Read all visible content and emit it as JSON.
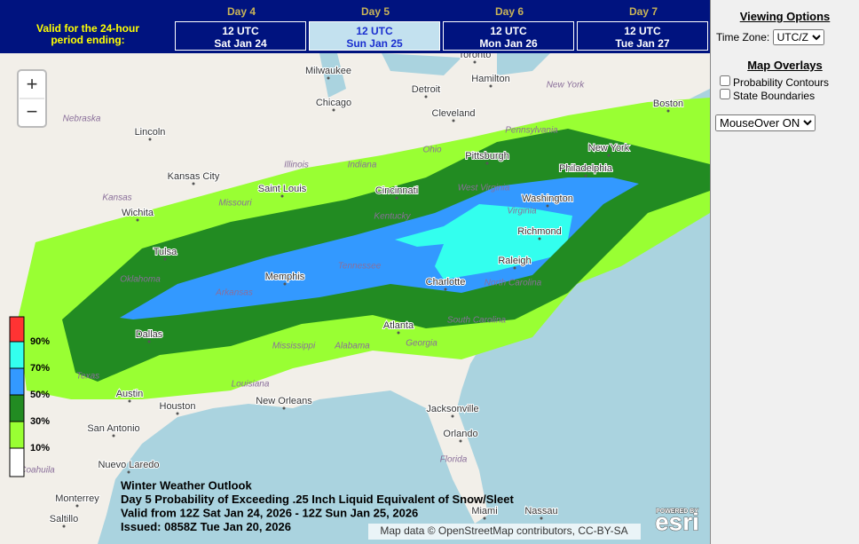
{
  "header": {
    "valid_label": "Valid for the 24-hour period ending:",
    "tabs": [
      {
        "day": "Day 4",
        "time": "12 UTC",
        "date": "Sat Jan 24"
      },
      {
        "day": "Day 5",
        "time": "12 UTC",
        "date": "Sun Jan 25"
      },
      {
        "day": "Day 6",
        "time": "12 UTC",
        "date": "Mon Jan 26"
      },
      {
        "day": "Day 7",
        "time": "12 UTC",
        "date": "Tue Jan 27"
      }
    ]
  },
  "zoom": {
    "in": "+",
    "out": "−"
  },
  "cities": [
    "Milwaukee",
    "Toronto",
    "Hamilton",
    "Detroit",
    "Chicago",
    "Cleveland",
    "Boston",
    "Lincoln",
    "Pittsburgh",
    "New York",
    "Philadelphia",
    "Kansas City",
    "Saint Louis",
    "Cincinnati",
    "Washington",
    "Wichita",
    "Richmond",
    "Tulsa",
    "Memphis",
    "Raleigh",
    "Charlotte",
    "Dallas",
    "Atlanta",
    "Austin",
    "Houston",
    "New Orleans",
    "Jacksonville",
    "San Antonio",
    "Orlando",
    "Nuevo Laredo",
    "Monterrey",
    "Saltillo",
    "Miami",
    "Nassau"
  ],
  "regions": [
    "Nebraska",
    "Illinois",
    "Indiana",
    "Ohio",
    "Pennsylvania",
    "New York",
    "Kansas",
    "Missouri",
    "West Virginia",
    "Kentucky",
    "Virginia",
    "Tennessee",
    "Oklahoma",
    "Arkansas",
    "North Carolina",
    "South Carolina",
    "Mississippi",
    "Alabama",
    "Georgia",
    "Texas",
    "Louisiana",
    "Florida",
    "Coahuila"
  ],
  "legend": [
    "90%",
    "70%",
    "50%",
    "30%",
    "10%"
  ],
  "caption": [
    "Winter Weather Outlook",
    "Day 5 Probability of Exceeding .25 Inch Liquid Equivalent of Snow/Sleet",
    "Valid from 12Z Sat Jan 24, 2026 - 12Z Sun Jan 25, 2026",
    "Issued: 0858Z Tue Jan 20, 2026"
  ],
  "attribution": "Map data © OpenStreetMap contributors, CC-BY-SA",
  "esri": {
    "powered": "POWERED BY",
    "logo": "esri"
  },
  "panel": {
    "viewing_title": "Viewing Options",
    "timezone_label": "Time Zone:",
    "timezone_value": "UTC/Z",
    "overlays_title": "Map Overlays",
    "overlays": [
      "Probability Contours",
      "State Boundaries"
    ],
    "mouseover": "MouseOver ON"
  }
}
